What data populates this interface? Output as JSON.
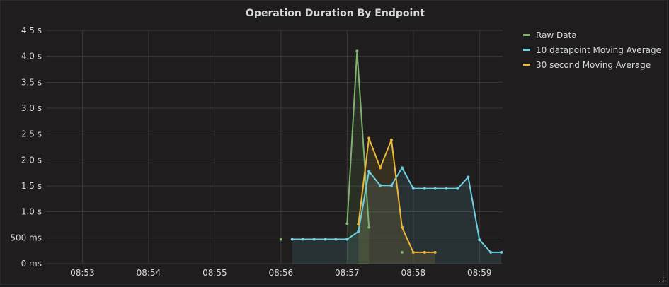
{
  "panel": {
    "title": "Operation Duration By Endpoint"
  },
  "chart_data": {
    "type": "line",
    "title": "Operation Duration By Endpoint",
    "xlabel": "",
    "ylabel": "",
    "x_ticks": [
      "08:53",
      "08:54",
      "08:55",
      "08:56",
      "08:57",
      "08:58",
      "08:59"
    ],
    "x_tick_values": [
      53,
      54,
      55,
      56,
      57,
      58,
      59
    ],
    "xlim": [
      52.45,
      59.35
    ],
    "y_ticks": [
      "0 ms",
      "500 ms",
      "1.0 s",
      "1.5 s",
      "2.0 s",
      "2.5 s",
      "3.0 s",
      "3.5 s",
      "4.0 s",
      "4.5 s"
    ],
    "y_tick_values": [
      0,
      0.5,
      1.0,
      1.5,
      2.0,
      2.5,
      3.0,
      3.5,
      4.0,
      4.5
    ],
    "ylim": [
      0,
      4.5
    ],
    "grid": true,
    "legend_position": "right",
    "series": [
      {
        "name": "Raw Data",
        "color": "#7eb26d",
        "segments": [
          [
            [
              56.0,
              0.47
            ]
          ],
          [
            [
              57.0,
              0.77
            ],
            [
              57.15,
              4.1
            ],
            [
              57.33,
              0.7
            ]
          ],
          [
            [
              57.83,
              0.22
            ]
          ]
        ]
      },
      {
        "name": "10 datapoint Moving Average",
        "color": "#6ed0e0",
        "segments": [
          [
            [
              56.17,
              0.47
            ],
            [
              56.33,
              0.47
            ],
            [
              56.5,
              0.47
            ],
            [
              56.67,
              0.47
            ],
            [
              56.83,
              0.47
            ],
            [
              57.0,
              0.47
            ],
            [
              57.17,
              0.62
            ],
            [
              57.33,
              1.78
            ],
            [
              57.5,
              1.51
            ],
            [
              57.67,
              1.51
            ],
            [
              57.83,
              1.85
            ],
            [
              58.0,
              1.45
            ],
            [
              58.17,
              1.45
            ],
            [
              58.33,
              1.45
            ],
            [
              58.5,
              1.45
            ],
            [
              58.67,
              1.45
            ],
            [
              58.83,
              1.67
            ],
            [
              59.0,
              0.46
            ],
            [
              59.17,
              0.22
            ],
            [
              59.33,
              0.22
            ]
          ]
        ]
      },
      {
        "name": "30 second Moving Average",
        "color": "#eab839",
        "segments": [
          [
            [
              57.17,
              0.76
            ],
            [
              57.33,
              2.42
            ],
            [
              57.5,
              1.85
            ],
            [
              57.67,
              2.39
            ],
            [
              57.83,
              0.7
            ],
            [
              58.0,
              0.22
            ],
            [
              58.17,
              0.22
            ],
            [
              58.33,
              0.22
            ]
          ]
        ]
      }
    ]
  }
}
